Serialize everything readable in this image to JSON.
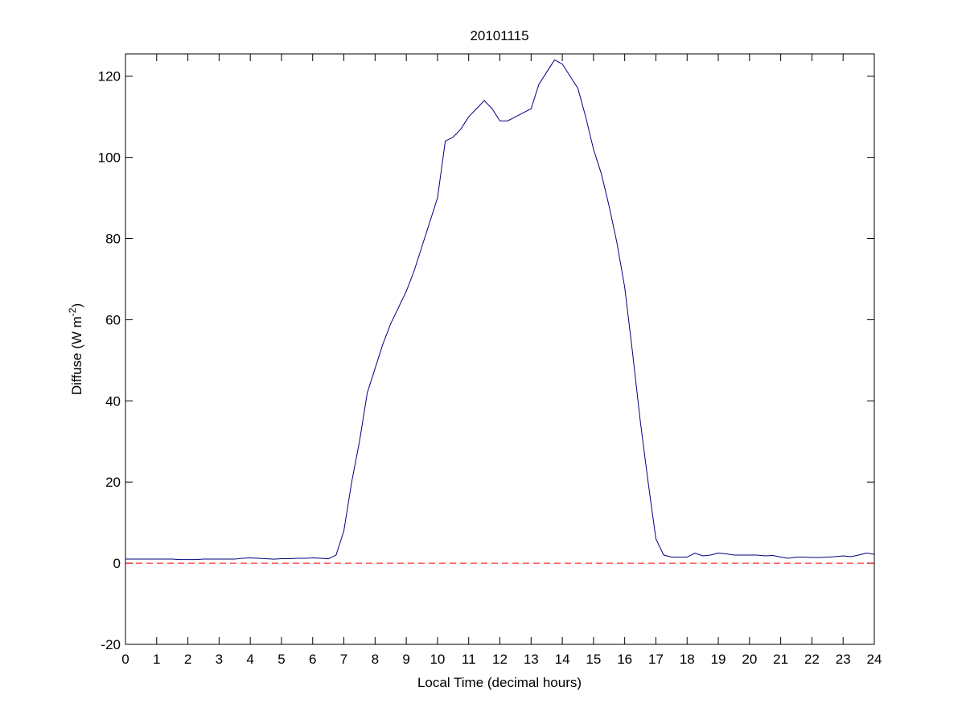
{
  "chart_data": {
    "type": "line",
    "title": "20101115",
    "xlabel": "Local Time (decimal hours)",
    "ylabel": {
      "text": "Diffuse (W m",
      "superscript": "-2",
      "suffix": ")"
    },
    "x": [
      0,
      0.25,
      0.5,
      0.75,
      1,
      1.25,
      1.5,
      1.75,
      2,
      2.25,
      2.5,
      2.75,
      3,
      3.25,
      3.5,
      3.75,
      4,
      4.25,
      4.5,
      4.75,
      5,
      5.25,
      5.5,
      5.75,
      6,
      6.25,
      6.5,
      6.75,
      7,
      7.25,
      7.5,
      7.75,
      8,
      8.25,
      8.5,
      8.75,
      9,
      9.25,
      9.5,
      9.75,
      10,
      10.25,
      10.5,
      10.75,
      11,
      11.25,
      11.5,
      11.75,
      12,
      12.25,
      12.5,
      12.75,
      13,
      13.25,
      13.5,
      13.75,
      14,
      14.25,
      14.5,
      14.75,
      15,
      15.25,
      15.5,
      15.75,
      16,
      16.25,
      16.5,
      16.75,
      17,
      17.25,
      17.5,
      17.75,
      18,
      18.25,
      18.5,
      18.75,
      19,
      19.25,
      19.5,
      19.75,
      20,
      20.25,
      20.5,
      20.75,
      21,
      21.25,
      21.5,
      21.75,
      22,
      22.25,
      22.5,
      22.75,
      23,
      23.25,
      23.5,
      23.75,
      24
    ],
    "series": [
      {
        "name": "Diffuse",
        "color": "#000080",
        "values": [
          1,
          1,
          1,
          1,
          1,
          1,
          1,
          0.9,
          0.9,
          0.9,
          1,
          1,
          1,
          1,
          1,
          1.2,
          1.3,
          1.2,
          1.1,
          1,
          1.1,
          1.1,
          1.2,
          1.2,
          1.3,
          1.2,
          1.1,
          2,
          8,
          20,
          30,
          42,
          48,
          54,
          59,
          63,
          67,
          72,
          78,
          84,
          90,
          104,
          105,
          107,
          110,
          112,
          114,
          112,
          109,
          109,
          110,
          111,
          112,
          118,
          121,
          124,
          123,
          120,
          117,
          110,
          102,
          96,
          88,
          79,
          68,
          52,
          35,
          20,
          6,
          2,
          1.5,
          1.5,
          1.5,
          2.5,
          1.8,
          2,
          2.5,
          2.3,
          2,
          2,
          2,
          2,
          1.8,
          1.9,
          1.5,
          1.2,
          1.5,
          1.5,
          1.4,
          1.4,
          1.5,
          1.6,
          1.8,
          1.6,
          2,
          2.5,
          2.2
        ]
      }
    ],
    "hlines": [
      {
        "value": 0,
        "color": "#ff0000",
        "style": "dashed"
      }
    ],
    "xlim": [
      0,
      24
    ],
    "xticks": [
      0,
      1,
      2,
      3,
      4,
      5,
      6,
      7,
      8,
      9,
      10,
      11,
      12,
      13,
      14,
      15,
      16,
      17,
      18,
      19,
      20,
      21,
      22,
      23,
      24
    ],
    "ylim": [
      -20,
      125.5
    ],
    "yticks": [
      -20,
      0,
      20,
      40,
      60,
      80,
      100,
      120
    ],
    "grid": false
  }
}
